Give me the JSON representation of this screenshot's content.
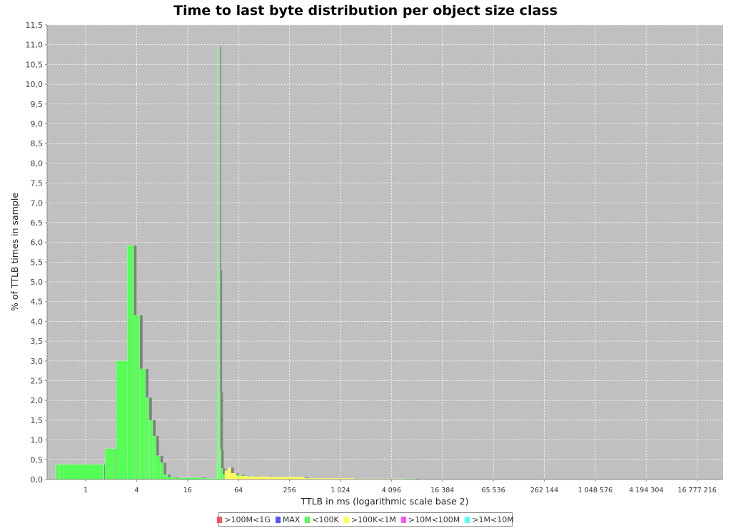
{
  "chart_data": {
    "type": "bar",
    "title": "Time to last byte distribution per object size class",
    "xlabel": "TTLB in ms (logarithmic scale base 2)",
    "ylabel": "% of TTLB times in sample",
    "x_scale": "log2",
    "xlim": [
      0.35,
      34000000
    ],
    "ylim": [
      0,
      11.5
    ],
    "y_ticks": [
      "0,0",
      "0,5",
      "1,0",
      "1,5",
      "2,0",
      "2,5",
      "3,0",
      "3,5",
      "4,0",
      "4,5",
      "5,0",
      "5,5",
      "6,0",
      "6,5",
      "7,0",
      "7,5",
      "8,0",
      "8,5",
      "9,0",
      "9,5",
      "10,0",
      "10,5",
      "11,0",
      "11,5"
    ],
    "x_ticks": [
      {
        "value": 1,
        "label": "1"
      },
      {
        "value": 4,
        "label": "4"
      },
      {
        "value": 16,
        "label": "16"
      },
      {
        "value": 64,
        "label": "64"
      },
      {
        "value": 256,
        "label": "256"
      },
      {
        "value": 1024,
        "label": "1 024"
      },
      {
        "value": 4096,
        "label": "4 096"
      },
      {
        "value": 16384,
        "label": "16 384"
      },
      {
        "value": 65536,
        "label": "65 536"
      },
      {
        "value": 262144,
        "label": "262 144"
      },
      {
        "value": 1048576,
        "label": "1 048 576"
      },
      {
        "value": 4194304,
        "label": "4 194 304"
      },
      {
        "value": 16777216,
        "label": "16 777 216"
      }
    ],
    "grid": true,
    "legend_position": "bottom",
    "series": [
      {
        "name": ">100M<1G",
        "color": "#ff5555",
        "bins": []
      },
      {
        "name": "MAX",
        "color": "#5555ff",
        "bins": []
      },
      {
        "name": "<100K",
        "color": "#55ff55",
        "bins": [
          {
            "x0": 0.44,
            "x1": 0.49,
            "y": 0.38
          },
          {
            "x0": 0.49,
            "x1": 0.55,
            "y": 0.38
          },
          {
            "x0": 0.55,
            "x1": 1.6,
            "y": 0.38
          },
          {
            "x0": 1.6,
            "x1": 1.65,
            "y": 0.38
          },
          {
            "x0": 1.7,
            "x1": 2.25,
            "y": 0.78
          },
          {
            "x0": 2.3,
            "x1": 3.1,
            "y": 3.0
          },
          {
            "x0": 3.1,
            "x1": 3.7,
            "y": 5.92
          },
          {
            "x0": 3.75,
            "x1": 4.35,
            "y": 4.15
          },
          {
            "x0": 4.4,
            "x1": 5.1,
            "y": 2.8
          },
          {
            "x0": 5.15,
            "x1": 5.6,
            "y": 2.07
          },
          {
            "x0": 5.65,
            "x1": 6.2,
            "y": 1.5
          },
          {
            "x0": 6.25,
            "x1": 6.8,
            "y": 1.1
          },
          {
            "x0": 6.8,
            "x1": 7.6,
            "y": 0.6
          },
          {
            "x0": 7.6,
            "x1": 8.3,
            "y": 0.42
          },
          {
            "x0": 8.3,
            "x1": 9.3,
            "y": 0.12
          },
          {
            "x0": 9.3,
            "x1": 11.5,
            "y": 0.06
          },
          {
            "x0": 11.5,
            "x1": 15,
            "y": 0.04
          },
          {
            "x0": 15,
            "x1": 24,
            "y": 0.05
          },
          {
            "x0": 24,
            "x1": 35,
            "y": 0.03
          },
          {
            "x0": 35,
            "x1": 35.9,
            "y": 0.4
          },
          {
            "x0": 35.9,
            "x1": 36.9,
            "y": 10.95
          },
          {
            "x0": 36.9,
            "x1": 37.8,
            "y": 5.3
          },
          {
            "x0": 37.8,
            "x1": 38.7,
            "y": 2.2
          },
          {
            "x0": 38.7,
            "x1": 39.6,
            "y": 0.75
          },
          {
            "x0": 39.6,
            "x1": 41.5,
            "y": 0.28
          },
          {
            "x0": 41.5,
            "x1": 47,
            "y": 0.12
          },
          {
            "x0": 47,
            "x1": 70,
            "y": 0.12
          },
          {
            "x0": 70,
            "x1": 100,
            "y": 0.08
          },
          {
            "x0": 100,
            "x1": 400,
            "y": 0.05
          },
          {
            "x0": 400,
            "x1": 8000,
            "y": 0.02
          }
        ]
      },
      {
        "name": ">100K<1M",
        "color": "#ffff55",
        "bins": [
          {
            "x0": 44,
            "x1": 48,
            "y": 0.22
          },
          {
            "x0": 48,
            "x1": 52,
            "y": 0.3
          },
          {
            "x0": 52,
            "x1": 60,
            "y": 0.16
          },
          {
            "x0": 60,
            "x1": 80,
            "y": 0.09
          },
          {
            "x0": 80,
            "x1": 150,
            "y": 0.07
          },
          {
            "x0": 150,
            "x1": 380,
            "y": 0.06
          },
          {
            "x0": 380,
            "x1": 1500,
            "y": 0.03
          },
          {
            "x0": 1500,
            "x1": 6000,
            "y": 0.015
          }
        ]
      },
      {
        "name": ">10M<100M",
        "color": "#ff55ff",
        "bins": []
      },
      {
        "name": ">1M<10M",
        "color": "#55ffff",
        "bins": []
      }
    ]
  }
}
